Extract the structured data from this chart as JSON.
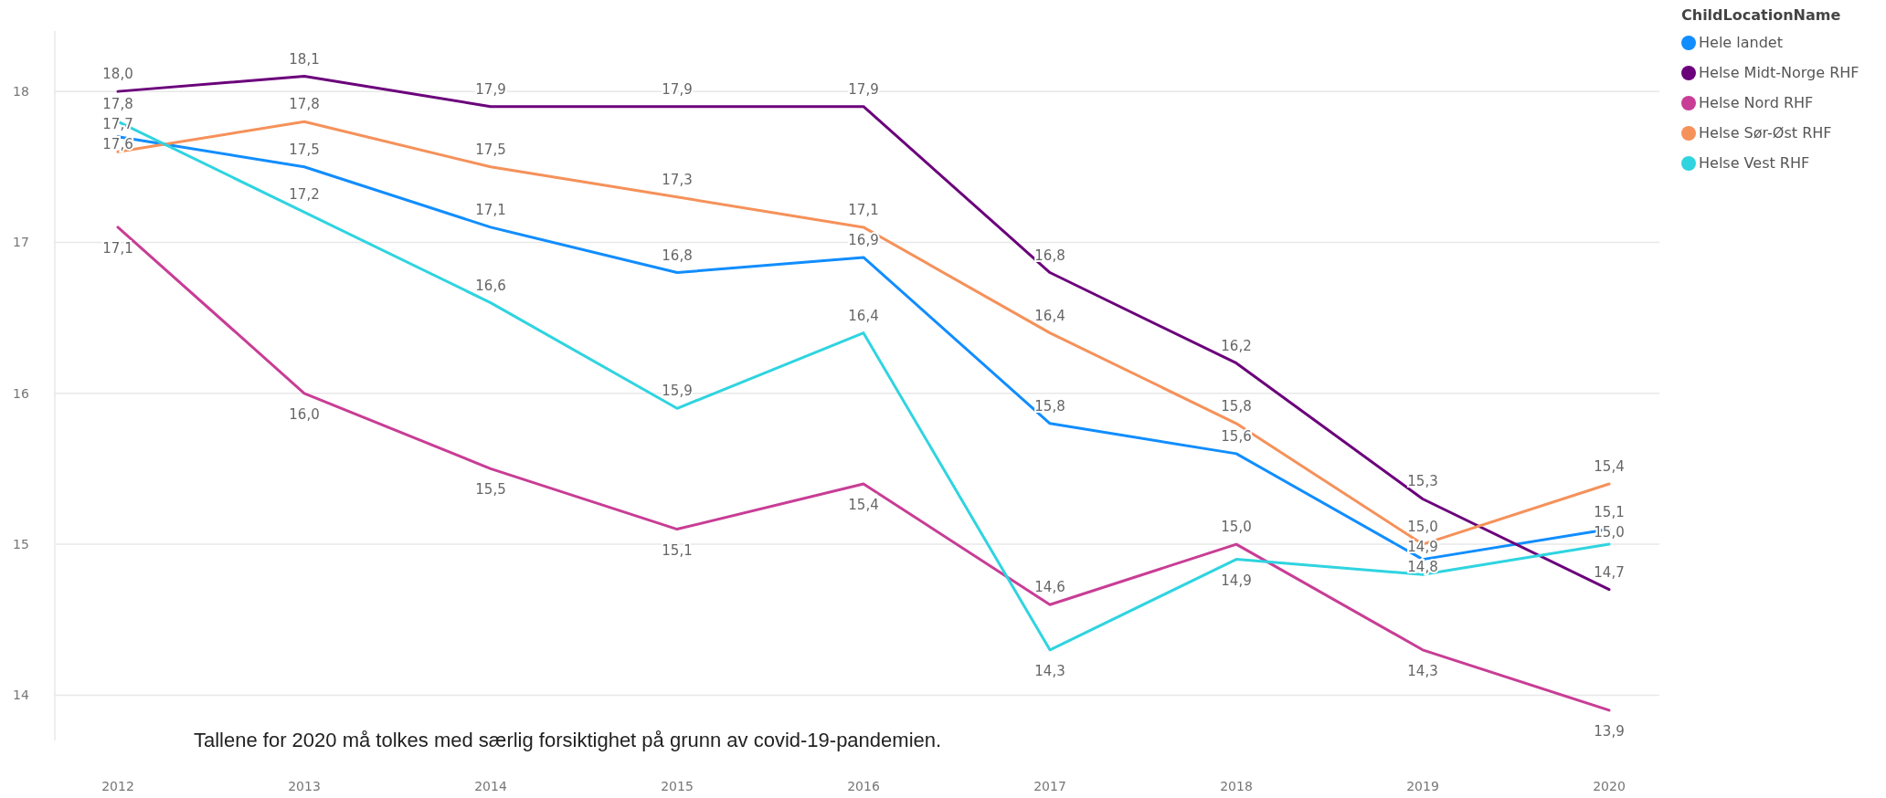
{
  "chart_data": {
    "type": "line",
    "categories": [
      "2012",
      "2013",
      "2014",
      "2015",
      "2016",
      "2017",
      "2018",
      "2019",
      "2020"
    ],
    "series": [
      {
        "name": "Hele landet",
        "color": "#118dff",
        "values": [
          17.7,
          17.5,
          17.1,
          16.8,
          16.9,
          15.8,
          15.6,
          14.9,
          15.1
        ],
        "value_labels": [
          "17,7",
          "17,5",
          "17,1",
          "16,8",
          "16,9",
          "15,8",
          "15,6",
          "14,9",
          "15,1"
        ]
      },
      {
        "name": "Helse Midt-Norge RHF",
        "color": "#6b007b",
        "values": [
          18.0,
          18.1,
          17.9,
          17.9,
          17.9,
          16.8,
          16.2,
          15.3,
          14.7
        ],
        "value_labels": [
          "18,0",
          "18,1",
          "17,9",
          "17,9",
          "17,9",
          "16,8",
          "16,2",
          "15,3",
          "14,7"
        ]
      },
      {
        "name": "Helse Nord RHF",
        "color": "#c83d95",
        "values": [
          17.1,
          16.0,
          15.5,
          15.1,
          15.4,
          14.6,
          15.0,
          14.3,
          13.9
        ],
        "value_labels": [
          "17,1",
          "16,0",
          "15,5",
          "15,1",
          "15,4",
          "14,6",
          "15,0",
          "14,3",
          "13,9"
        ]
      },
      {
        "name": "Helse Sør-Øst RHF",
        "color": "#f5915a",
        "values": [
          17.6,
          17.8,
          17.5,
          17.3,
          17.1,
          16.4,
          15.8,
          15.0,
          15.4
        ],
        "value_labels": [
          "17,6",
          "17,8",
          "17,5",
          "17,3",
          "17,1",
          "16,4",
          "15,8",
          "15,0",
          "15,4"
        ]
      },
      {
        "name": "Helse Vest RHF",
        "color": "#2fd4e0",
        "values": [
          17.8,
          17.2,
          16.6,
          15.9,
          16.4,
          14.3,
          14.9,
          14.8,
          15.0
        ],
        "value_labels": [
          "17,8",
          "17,2",
          "16,6",
          "15,9",
          "16,4",
          "14,3",
          "14,9",
          "14,8",
          "15,0"
        ]
      }
    ],
    "ylim": [
      13.7,
      18.4
    ],
    "yticks": [
      14,
      15,
      16,
      17,
      18
    ],
    "grid": "y",
    "legend": "top right",
    "legend_title": "ChildLocationName",
    "marker": "none",
    "line_style": "solid",
    "annotations": [
      "Tallene for 2020 må tolkes med særlig forsiktighet på grunn av covid-19-pandemien."
    ]
  }
}
